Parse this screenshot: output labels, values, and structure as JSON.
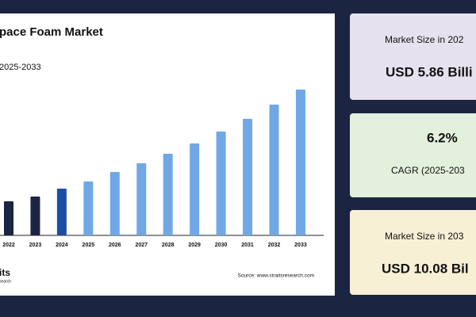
{
  "chart_data": {
    "type": "bar",
    "title": "pace Foam Market",
    "subtitle": "2025-2033",
    "categories": [
      "2022",
      "2023",
      "2024",
      "2025",
      "2026",
      "2027",
      "2028",
      "2029",
      "2030",
      "2031",
      "2032",
      "2033"
    ],
    "values": [
      43,
      49,
      59,
      68,
      80,
      91,
      103,
      116,
      131,
      147,
      165,
      184
    ],
    "colors": [
      "#1b2542",
      "#1b2542",
      "#1d4ea6",
      "#6fa8e4",
      "#6fa8e4",
      "#6fa8e4",
      "#6fa8e4",
      "#6fa8e4",
      "#6fa8e4",
      "#6fa8e4",
      "#6fa8e4",
      "#6fa8e4"
    ],
    "source": "Source: www.straitsresearch.com",
    "logo": [
      "its",
      "search"
    ]
  },
  "cards": [
    {
      "label": "Market Size in 202",
      "value": "USD 5.86 Billi",
      "color": "#e6e1ee"
    },
    {
      "value": "6.2%",
      "label": "CAGR (2025-203",
      "color": "#e3f0dc"
    },
    {
      "label": "Market Size in 203",
      "value": "USD 10.08 Bil",
      "color": "#f7f0d4"
    }
  ]
}
